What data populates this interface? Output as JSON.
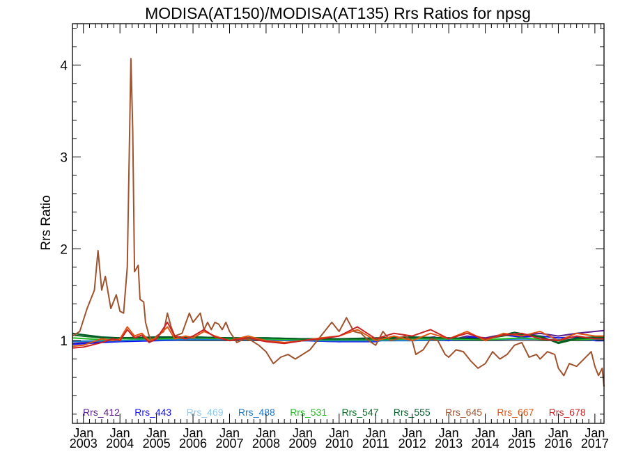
{
  "chart_data": {
    "type": "line",
    "title": "MODISA(AT150)/MODISA(AT135)  Rrs Ratios for npsg",
    "xlabel": "",
    "ylabel": "Rrs Ratio",
    "xlim": [
      2002.7,
      2017.25
    ],
    "ylim": [
      0.1,
      4.45
    ],
    "yticks": [
      1,
      2,
      3,
      4
    ],
    "xticks": [
      {
        "year": 2003,
        "line1": "Jan",
        "line2": "2003"
      },
      {
        "year": 2004,
        "line1": "Jan",
        "line2": "2004"
      },
      {
        "year": 2005,
        "line1": "Jan",
        "line2": "2005"
      },
      {
        "year": 2006,
        "line1": "Jan",
        "line2": "2006"
      },
      {
        "year": 2007,
        "line1": "Jan",
        "line2": "2007"
      },
      {
        "year": 2008,
        "line1": "Jan",
        "line2": "2008"
      },
      {
        "year": 2009,
        "line1": "Jan",
        "line2": "2009"
      },
      {
        "year": 2010,
        "line1": "Jan",
        "line2": "2010"
      },
      {
        "year": 2011,
        "line1": "Jan",
        "line2": "2011"
      },
      {
        "year": 2012,
        "line1": "Jan",
        "line2": "2012"
      },
      {
        "year": 2013,
        "line1": "Jan",
        "line2": "2013"
      },
      {
        "year": 2014,
        "line1": "Jan",
        "line2": "2014"
      },
      {
        "year": 2015,
        "line1": "Jan",
        "line2": "2015"
      },
      {
        "year": 2016,
        "line1": "Jan",
        "line2": "2016"
      },
      {
        "year": 2017,
        "line1": "Jan",
        "line2": "2017"
      }
    ],
    "grid": false,
    "legend_placement": "bottom",
    "reference_line": 1,
    "series": [
      {
        "name": "Rrs_412",
        "color": "#5a1a8c",
        "x": [
          2002.7,
          2003.5,
          2004.0,
          2005.0,
          2006.0,
          2007.0,
          2008.0,
          2009.0,
          2010.0,
          2010.8,
          2011.3,
          2012.0,
          2012.6,
          2013.0,
          2013.5,
          2014.0,
          2014.5,
          2015.0,
          2015.5,
          2016.0,
          2016.5,
          2017.0,
          2017.25
        ],
        "y": [
          0.97,
          0.99,
          1.0,
          1.01,
          1.02,
          1.02,
          1.02,
          1.0,
          0.99,
          1.0,
          1.03,
          1.02,
          1.04,
          1.0,
          1.05,
          1.03,
          1.07,
          1.05,
          1.08,
          1.05,
          1.08,
          1.1,
          1.11
        ]
      },
      {
        "name": "Rrs_443",
        "color": "#1111ee",
        "x": [
          2002.7,
          2003.5,
          2004.0,
          2005.0,
          2006.0,
          2007.0,
          2008.0,
          2009.0,
          2010.0,
          2011.0,
          2011.5,
          2012.0,
          2012.5,
          2013.0,
          2013.6,
          2014.0,
          2014.5,
          2015.0,
          2015.5,
          2016.0,
          2016.5,
          2017.0,
          2017.25
        ],
        "y": [
          0.96,
          0.98,
          0.99,
          1.0,
          1.01,
          1.01,
          1.01,
          1.0,
          0.99,
          0.99,
          1.03,
          1.01,
          1.02,
          1.0,
          1.04,
          1.02,
          1.06,
          1.04,
          1.05,
          1.03,
          1.04,
          1.0,
          1.0
        ]
      },
      {
        "name": "Rrs_469",
        "color": "#8ec8ee",
        "x": [
          2002.7,
          2004.0,
          2005.0,
          2006.0,
          2007.0,
          2008.0,
          2009.0,
          2010.0,
          2011.0,
          2012.0,
          2013.0,
          2014.0,
          2015.0,
          2016.0,
          2017.0,
          2017.25
        ],
        "y": [
          1.0,
          1.0,
          1.01,
          1.01,
          1.01,
          1.01,
          1.0,
          1.0,
          1.0,
          1.01,
          1.01,
          1.01,
          1.02,
          1.01,
          1.01,
          1.01
        ]
      },
      {
        "name": "Rrs_488",
        "color": "#1a78c8",
        "x": [
          2002.7,
          2004.0,
          2005.0,
          2006.0,
          2007.0,
          2008.0,
          2009.0,
          2010.0,
          2011.0,
          2012.0,
          2013.0,
          2014.0,
          2015.0,
          2016.0,
          2017.0,
          2017.25
        ],
        "y": [
          0.99,
          1.0,
          1.01,
          1.01,
          1.01,
          1.01,
          1.0,
          1.0,
          1.0,
          1.0,
          1.01,
          1.01,
          1.02,
          1.01,
          1.01,
          1.01
        ]
      },
      {
        "name": "Rrs_531",
        "color": "#22bb22",
        "x": [
          2002.7,
          2003.5,
          2004.0,
          2005.0,
          2006.0,
          2007.0,
          2008.0,
          2009.0,
          2010.0,
          2011.0,
          2012.0,
          2013.0,
          2014.0,
          2015.0,
          2016.0,
          2017.0,
          2017.25
        ],
        "y": [
          1.03,
          1.01,
          1.02,
          1.02,
          1.03,
          1.02,
          1.02,
          1.01,
          1.01,
          1.01,
          1.02,
          1.02,
          1.01,
          1.03,
          1.0,
          1.02,
          1.02
        ]
      },
      {
        "name": "Rrs_547",
        "color": "#0a6a22",
        "x": [
          2002.7,
          2003.5,
          2004.0,
          2005.0,
          2006.0,
          2007.0,
          2008.0,
          2009.0,
          2010.0,
          2011.0,
          2012.0,
          2013.0,
          2014.0,
          2014.8,
          2015.5,
          2016.0,
          2016.5,
          2017.0,
          2017.25
        ],
        "y": [
          1.06,
          1.03,
          1.03,
          1.03,
          1.04,
          1.03,
          1.03,
          1.02,
          1.02,
          1.02,
          1.03,
          1.03,
          1.02,
          1.07,
          1.05,
          0.97,
          1.02,
          1.03,
          1.03
        ]
      },
      {
        "name": "Rrs_555",
        "color": "#005a28",
        "x": [
          2002.7,
          2003.5,
          2004.0,
          2005.0,
          2006.0,
          2007.0,
          2008.0,
          2009.0,
          2010.0,
          2011.0,
          2012.0,
          2013.0,
          2014.0,
          2014.8,
          2015.5,
          2016.0,
          2016.5,
          2017.0,
          2017.25
        ],
        "y": [
          1.08,
          1.04,
          1.03,
          1.04,
          1.04,
          1.03,
          1.03,
          1.02,
          1.02,
          1.03,
          1.04,
          1.03,
          1.02,
          1.09,
          1.04,
          0.98,
          1.03,
          1.04,
          1.04
        ]
      },
      {
        "name": "Rrs_645",
        "color": "#a0522d",
        "x": [
          2002.7,
          2002.9,
          2003.1,
          2003.3,
          2003.4,
          2003.5,
          2003.6,
          2003.75,
          2003.9,
          2004.0,
          2004.1,
          2004.2,
          2004.3,
          2004.35,
          2004.4,
          2004.5,
          2004.55,
          2004.65,
          2004.7,
          2004.8,
          2004.9,
          2005.0,
          2005.2,
          2005.3,
          2005.4,
          2005.5,
          2005.7,
          2005.9,
          2006.0,
          2006.2,
          2006.3,
          2006.4,
          2006.5,
          2006.6,
          2006.7,
          2006.8,
          2006.9,
          2007.0,
          2007.2,
          2007.4,
          2007.6,
          2007.8,
          2008.0,
          2008.2,
          2008.4,
          2008.6,
          2008.8,
          2009.0,
          2009.2,
          2009.4,
          2009.6,
          2009.8,
          2010.0,
          2010.2,
          2010.4,
          2010.6,
          2010.8,
          2011.0,
          2011.2,
          2011.4,
          2011.6,
          2011.8,
          2012.0,
          2012.1,
          2012.3,
          2012.5,
          2012.7,
          2012.9,
          2013.0,
          2013.2,
          2013.4,
          2013.6,
          2013.8,
          2014.0,
          2014.2,
          2014.4,
          2014.6,
          2014.8,
          2015.0,
          2015.2,
          2015.4,
          2015.5,
          2015.7,
          2015.9,
          2016.0,
          2016.15,
          2016.3,
          2016.5,
          2016.7,
          2016.9,
          2017.0,
          2017.1,
          2017.2,
          2017.25
        ],
        "y": [
          1.05,
          1.1,
          1.35,
          1.55,
          1.98,
          1.55,
          1.7,
          1.35,
          1.5,
          1.32,
          1.3,
          1.8,
          4.07,
          3.3,
          1.75,
          1.82,
          1.45,
          1.42,
          1.2,
          1.05,
          1.0,
          1.05,
          1.1,
          1.3,
          1.15,
          1.05,
          1.08,
          1.3,
          1.2,
          1.3,
          1.12,
          1.2,
          1.12,
          1.2,
          1.18,
          1.12,
          1.2,
          1.1,
          0.98,
          1.02,
          1.0,
          0.95,
          0.88,
          0.75,
          0.82,
          0.85,
          0.8,
          0.85,
          0.9,
          1.0,
          1.1,
          1.2,
          1.1,
          1.25,
          1.1,
          1.08,
          1.0,
          0.95,
          1.1,
          1.0,
          1.02,
          1.05,
          1.0,
          0.85,
          0.9,
          1.02,
          1.0,
          0.85,
          0.82,
          0.9,
          0.88,
          0.78,
          0.7,
          0.75,
          0.88,
          0.8,
          0.85,
          0.95,
          0.98,
          0.82,
          0.85,
          0.8,
          0.88,
          0.85,
          0.7,
          0.62,
          0.75,
          0.72,
          0.8,
          0.88,
          0.72,
          0.62,
          0.7,
          0.5
        ]
      },
      {
        "name": "Rrs_667",
        "color": "#e05512",
        "x": [
          2002.7,
          2003.0,
          2003.5,
          2003.8,
          2004.0,
          2004.2,
          2004.4,
          2004.6,
          2004.8,
          2005.0,
          2005.3,
          2005.5,
          2005.8,
          2006.0,
          2006.3,
          2006.6,
          2007.0,
          2007.5,
          2008.0,
          2008.5,
          2009.0,
          2009.5,
          2010.0,
          2010.5,
          2011.0,
          2011.5,
          2012.0,
          2012.5,
          2013.0,
          2013.5,
          2014.0,
          2014.5,
          2015.0,
          2015.5,
          2016.0,
          2016.5,
          2017.0,
          2017.25
        ],
        "y": [
          0.94,
          0.95,
          1.02,
          1.0,
          1.02,
          1.15,
          1.05,
          1.08,
          1.0,
          1.03,
          1.15,
          1.02,
          1.05,
          1.03,
          1.1,
          1.05,
          1.0,
          1.05,
          1.0,
          0.98,
          1.0,
          1.03,
          1.05,
          1.12,
          1.0,
          1.05,
          1.0,
          1.08,
          1.02,
          1.1,
          1.0,
          1.08,
          1.05,
          1.1,
          1.0,
          1.08,
          1.05,
          1.05
        ]
      },
      {
        "name": "Rrs_678",
        "color": "#cc2222",
        "x": [
          2002.7,
          2003.0,
          2003.5,
          2003.8,
          2004.0,
          2004.2,
          2004.4,
          2004.6,
          2004.8,
          2005.0,
          2005.3,
          2005.5,
          2005.8,
          2006.0,
          2006.3,
          2006.6,
          2007.0,
          2007.5,
          2008.0,
          2008.5,
          2009.0,
          2009.5,
          2010.0,
          2010.5,
          2011.0,
          2011.5,
          2012.0,
          2012.5,
          2013.0,
          2013.5,
          2014.0,
          2014.5,
          2015.0,
          2015.5,
          2016.0,
          2016.5,
          2017.0,
          2017.25
        ],
        "y": [
          0.92,
          0.93,
          0.98,
          1.02,
          1.0,
          1.12,
          1.03,
          1.06,
          0.98,
          1.02,
          1.2,
          1.05,
          1.02,
          1.05,
          1.12,
          1.04,
          1.0,
          1.03,
          0.99,
          0.97,
          1.0,
          1.02,
          1.05,
          1.15,
          1.02,
          1.08,
          1.05,
          1.12,
          1.02,
          1.08,
          1.02,
          1.06,
          1.08,
          1.02,
          1.0,
          1.05,
          1.02,
          1.02
        ]
      }
    ]
  }
}
